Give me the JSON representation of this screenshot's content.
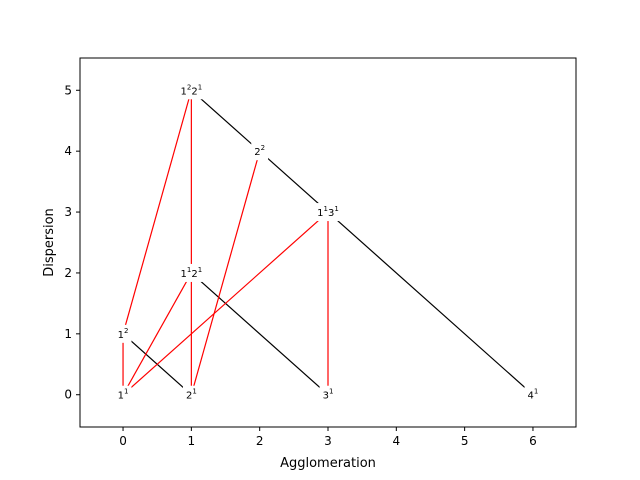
{
  "chart_data": {
    "type": "scatter",
    "title": "",
    "xlabel": "Agglomeration",
    "ylabel": "Dispersion",
    "xlim": [
      -0.63,
      6.63
    ],
    "ylim": [
      -0.53,
      5.53
    ],
    "x_ticks": [
      0,
      1,
      2,
      3,
      4,
      5,
      6
    ],
    "y_ticks": [
      0,
      1,
      2,
      3,
      4,
      5
    ],
    "grid": false,
    "nodes": [
      {
        "id": "n1",
        "x": 0,
        "y": 0,
        "label": [
          {
            "base": "1",
            "sup": "1"
          }
        ]
      },
      {
        "id": "n2",
        "x": 0,
        "y": 1,
        "label": [
          {
            "base": "1",
            "sup": "2"
          }
        ]
      },
      {
        "id": "n3",
        "x": 1,
        "y": 0,
        "label": [
          {
            "base": "2",
            "sup": "1"
          }
        ]
      },
      {
        "id": "n4",
        "x": 1,
        "y": 2,
        "label": [
          {
            "base": "1",
            "sup": "1"
          },
          {
            "base": "2",
            "sup": "1"
          }
        ]
      },
      {
        "id": "n5",
        "x": 1,
        "y": 5,
        "label": [
          {
            "base": "1",
            "sup": "2"
          },
          {
            "base": "2",
            "sup": "1"
          }
        ]
      },
      {
        "id": "n6",
        "x": 2,
        "y": 4,
        "label": [
          {
            "base": "2",
            "sup": "2"
          }
        ]
      },
      {
        "id": "n7",
        "x": 3,
        "y": 0,
        "label": [
          {
            "base": "3",
            "sup": "1"
          }
        ]
      },
      {
        "id": "n8",
        "x": 3,
        "y": 3,
        "label": [
          {
            "base": "1",
            "sup": "1"
          },
          {
            "base": "3",
            "sup": "1"
          }
        ]
      },
      {
        "id": "n9",
        "x": 6,
        "y": 0,
        "label": [
          {
            "base": "4",
            "sup": "1"
          }
        ]
      }
    ],
    "edges": [
      {
        "from": "n5",
        "to": "n6",
        "color": "#000000"
      },
      {
        "from": "n6",
        "to": "n8",
        "color": "#000000"
      },
      {
        "from": "n8",
        "to": "n9",
        "color": "#000000"
      },
      {
        "from": "n4",
        "to": "n7",
        "color": "#000000"
      },
      {
        "from": "n2",
        "to": "n3",
        "color": "#000000"
      },
      {
        "from": "n1",
        "to": "n2",
        "color": "#ff0000"
      },
      {
        "from": "n2",
        "to": "n5",
        "color": "#ff0000"
      },
      {
        "from": "n1",
        "to": "n4",
        "color": "#ff0000"
      },
      {
        "from": "n1",
        "to": "n8",
        "color": "#ff0000"
      },
      {
        "from": "n3",
        "to": "n4",
        "color": "#ff0000"
      },
      {
        "from": "n4",
        "to": "n5",
        "color": "#ff0000"
      },
      {
        "from": "n3",
        "to": "n6",
        "color": "#ff0000"
      },
      {
        "from": "n7",
        "to": "n8",
        "color": "#ff0000"
      }
    ],
    "colors": {
      "hierarchy_edge": "#000000",
      "refinement_edge": "#ff0000",
      "axes": "#000000"
    }
  }
}
